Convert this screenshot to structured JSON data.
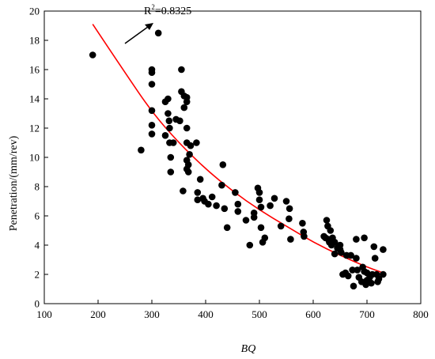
{
  "chart_data": {
    "type": "scatter",
    "title": "",
    "xlabel": "BQ",
    "ylabel": "Penetration/(mm/rev)",
    "xlim": [
      100,
      800
    ],
    "ylim": [
      0,
      20
    ],
    "xticks": [
      100,
      200,
      300,
      400,
      500,
      600,
      700,
      800
    ],
    "yticks": [
      0,
      2,
      4,
      6,
      8,
      10,
      12,
      14,
      16,
      18,
      20
    ],
    "grid": false,
    "legend": "none",
    "marker_color": "#000000",
    "fit_color": "#ff0000",
    "annotation": {
      "text": "R",
      "sup": "2",
      "rest": "=0.8325"
    },
    "fit_curve": {
      "x": [
        190,
        250,
        300,
        350,
        400,
        450,
        500,
        550,
        600,
        650,
        700,
        730
      ],
      "y": [
        19.1,
        15.8,
        13.1,
        11.0,
        9.2,
        7.7,
        6.4,
        5.3,
        4.2,
        3.3,
        2.5,
        2.1
      ]
    },
    "points": [
      [
        190,
        17
      ],
      [
        312,
        18.5
      ],
      [
        300,
        16
      ],
      [
        300,
        15.8
      ],
      [
        300,
        15
      ],
      [
        300,
        13.2
      ],
      [
        300,
        12.2
      ],
      [
        300,
        11.6
      ],
      [
        280,
        10.5
      ],
      [
        325,
        11.5
      ],
      [
        325,
        13.8
      ],
      [
        330,
        14
      ],
      [
        330,
        13
      ],
      [
        332,
        12.5
      ],
      [
        333,
        12
      ],
      [
        333,
        11
      ],
      [
        335,
        10
      ],
      [
        335,
        9
      ],
      [
        340,
        11
      ],
      [
        345,
        12.6
      ],
      [
        352,
        12.5
      ],
      [
        355,
        16
      ],
      [
        355,
        14.5
      ],
      [
        360,
        14.2
      ],
      [
        360,
        13.4
      ],
      [
        365,
        14.1
      ],
      [
        365,
        13.8
      ],
      [
        365,
        12
      ],
      [
        365,
        11
      ],
      [
        365,
        9.8
      ],
      [
        368,
        9.5
      ],
      [
        365,
        9.2
      ],
      [
        368,
        9
      ],
      [
        370,
        10.2
      ],
      [
        372,
        10.8
      ],
      [
        358,
        7.7
      ],
      [
        383,
        11
      ],
      [
        385,
        7.6
      ],
      [
        390,
        8.5
      ],
      [
        385,
        7.1
      ],
      [
        395,
        7.2
      ],
      [
        398,
        7
      ],
      [
        405,
        6.8
      ],
      [
        412,
        7.3
      ],
      [
        420,
        6.7
      ],
      [
        430,
        8.1
      ],
      [
        432,
        9.5
      ],
      [
        435,
        6.5
      ],
      [
        440,
        5.2
      ],
      [
        455,
        7.6
      ],
      [
        460,
        6.8
      ],
      [
        460,
        6.3
      ],
      [
        475,
        5.7
      ],
      [
        482,
        4
      ],
      [
        490,
        6.2
      ],
      [
        490,
        5.9
      ],
      [
        497,
        7.9
      ],
      [
        500,
        7.6
      ],
      [
        500,
        7.1
      ],
      [
        503,
        6.6
      ],
      [
        503,
        5.2
      ],
      [
        506,
        4.2
      ],
      [
        510,
        4.5
      ],
      [
        520,
        6.7
      ],
      [
        528,
        7.2
      ],
      [
        540,
        5.3
      ],
      [
        550,
        7
      ],
      [
        556,
        6.5
      ],
      [
        555,
        5.8
      ],
      [
        558,
        4.4
      ],
      [
        580,
        5.5
      ],
      [
        582,
        4.9
      ],
      [
        583,
        4.6
      ],
      [
        620,
        4.6
      ],
      [
        623,
        4.5
      ],
      [
        625,
        5.7
      ],
      [
        627,
        5.3
      ],
      [
        628,
        4.4
      ],
      [
        630,
        4.2
      ],
      [
        632,
        5
      ],
      [
        634,
        4
      ],
      [
        636,
        4.5
      ],
      [
        640,
        3.4
      ],
      [
        640,
        4.2
      ],
      [
        645,
        3.8
      ],
      [
        650,
        4
      ],
      [
        650,
        3.7
      ],
      [
        652,
        3.5
      ],
      [
        655,
        2
      ],
      [
        660,
        2.1
      ],
      [
        662,
        3.3
      ],
      [
        665,
        1.9
      ],
      [
        670,
        3.3
      ],
      [
        673,
        2.3
      ],
      [
        675,
        1.2
      ],
      [
        680,
        4.4
      ],
      [
        680,
        3.1
      ],
      [
        682,
        2.3
      ],
      [
        685,
        1.8
      ],
      [
        690,
        1.5
      ],
      [
        692,
        2.5
      ],
      [
        695,
        4.5
      ],
      [
        695,
        2.2
      ],
      [
        698,
        1.3
      ],
      [
        700,
        2.1
      ],
      [
        700,
        1.6
      ],
      [
        705,
        1.8
      ],
      [
        708,
        1.4
      ],
      [
        710,
        2
      ],
      [
        713,
        3.9
      ],
      [
        715,
        3.1
      ],
      [
        718,
        2
      ],
      [
        720,
        1.5
      ],
      [
        722,
        1.7
      ],
      [
        730,
        3.7
      ],
      [
        730,
        2
      ]
    ]
  }
}
